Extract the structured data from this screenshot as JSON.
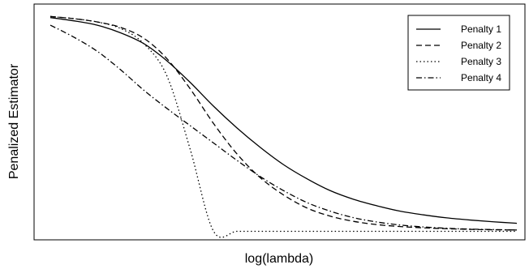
{
  "chart_data": {
    "type": "line",
    "title": "",
    "xlabel": "log(lambda)",
    "ylabel": "Penalized Estimator",
    "xlim": [
      0,
      10
    ],
    "ylim": [
      0,
      1
    ],
    "x_ticks_shown": false,
    "y_ticks_shown": false,
    "grid": false,
    "legend_position": "top-right",
    "x": [
      0.0,
      0.5,
      1.0,
      1.5,
      2.0,
      2.5,
      3.0,
      3.5,
      4.0,
      4.5,
      5.0,
      5.5,
      6.0,
      6.5,
      7.0,
      7.5,
      8.0,
      8.5,
      9.0,
      9.5,
      10.0
    ],
    "series": [
      {
        "name": "Penalty 1",
        "dash": "solid",
        "values": [
          0.99,
          0.975,
          0.955,
          0.92,
          0.87,
          0.79,
          0.69,
          0.58,
          0.48,
          0.39,
          0.31,
          0.245,
          0.19,
          0.15,
          0.12,
          0.095,
          0.078,
          0.064,
          0.054,
          0.046,
          0.039
        ]
      },
      {
        "name": "Penalty 2",
        "dash": "dashed",
        "values": [
          0.995,
          0.985,
          0.97,
          0.945,
          0.895,
          0.8,
          0.66,
          0.5,
          0.36,
          0.25,
          0.17,
          0.11,
          0.072,
          0.048,
          0.033,
          0.024,
          0.018,
          0.014,
          0.011,
          0.009,
          0.008
        ]
      },
      {
        "name": "Penalty 3",
        "dash": "dotted",
        "values": [
          0.995,
          0.985,
          0.97,
          0.94,
          0.87,
          0.72,
          0.38,
          0.002,
          0.002,
          0.002,
          0.002,
          0.002,
          0.002,
          0.002,
          0.002,
          0.002,
          0.002,
          0.002,
          0.002,
          0.002,
          0.002
        ]
      },
      {
        "name": "Penalty 4",
        "dash": "dashdot",
        "values": [
          0.955,
          0.9,
          0.835,
          0.75,
          0.655,
          0.57,
          0.49,
          0.41,
          0.33,
          0.255,
          0.19,
          0.135,
          0.095,
          0.065,
          0.045,
          0.031,
          0.022,
          0.016,
          0.012,
          0.01,
          0.008
        ]
      }
    ]
  }
}
